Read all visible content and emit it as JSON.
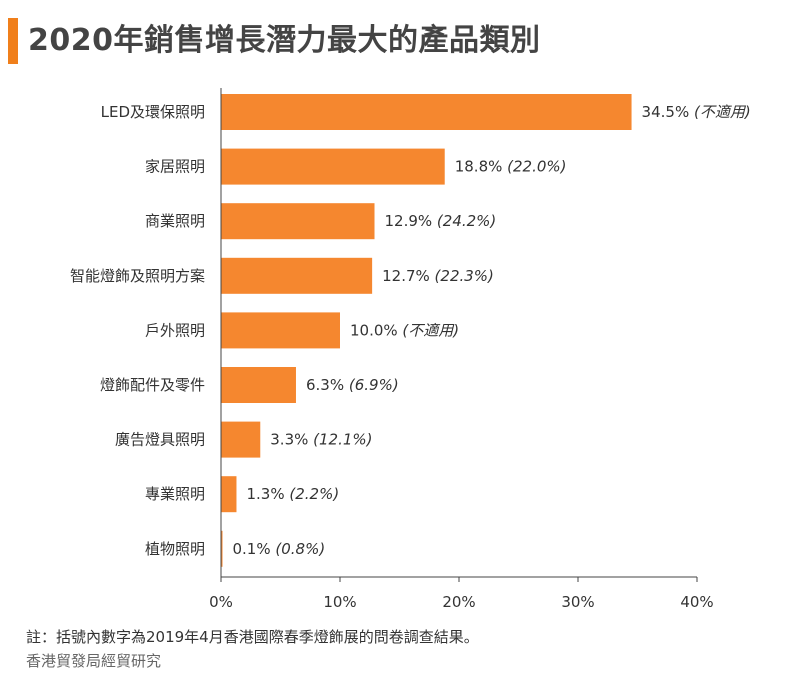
{
  "title": "2020年銷售增長潛力最大的產品類別",
  "footnote": "註：括號內數字為2019年4月香港國際春季燈飾展的問卷調查結果。",
  "source": "香港貿發局經貿研究",
  "colors": {
    "accent": "#f07f1b",
    "bar": "#f5872f",
    "axis": "#444444",
    "text": "#333333"
  },
  "chart_data": {
    "type": "bar",
    "orientation": "horizontal",
    "categories": [
      "LED及環保照明",
      "家居照明",
      "商業照明",
      "智能燈飾及照明方案",
      "戶外照明",
      "燈飾配件及零件",
      "廣告燈具照明",
      "專業照明",
      "植物照明"
    ],
    "values": [
      34.5,
      18.8,
      12.9,
      12.7,
      10.0,
      6.3,
      3.3,
      1.3,
      0.1
    ],
    "value_labels": [
      "34.5%",
      "18.8%",
      "12.9%",
      "12.7%",
      "10.0%",
      "6.3%",
      "3.3%",
      "1.3%",
      "0.1%"
    ],
    "previous_labels": [
      "(不適用)",
      "(22.0%)",
      "(24.2%)",
      "(22.3%)",
      "(不適用)",
      "(6.9%)",
      "(12.1%)",
      "(2.2%)",
      "(0.8%)"
    ],
    "xlim": [
      0,
      40
    ],
    "xticks": [
      0,
      10,
      20,
      30,
      40
    ],
    "xtick_labels": [
      "0%",
      "10%",
      "20%",
      "30%",
      "40%"
    ],
    "grid": false,
    "legend": "none"
  }
}
